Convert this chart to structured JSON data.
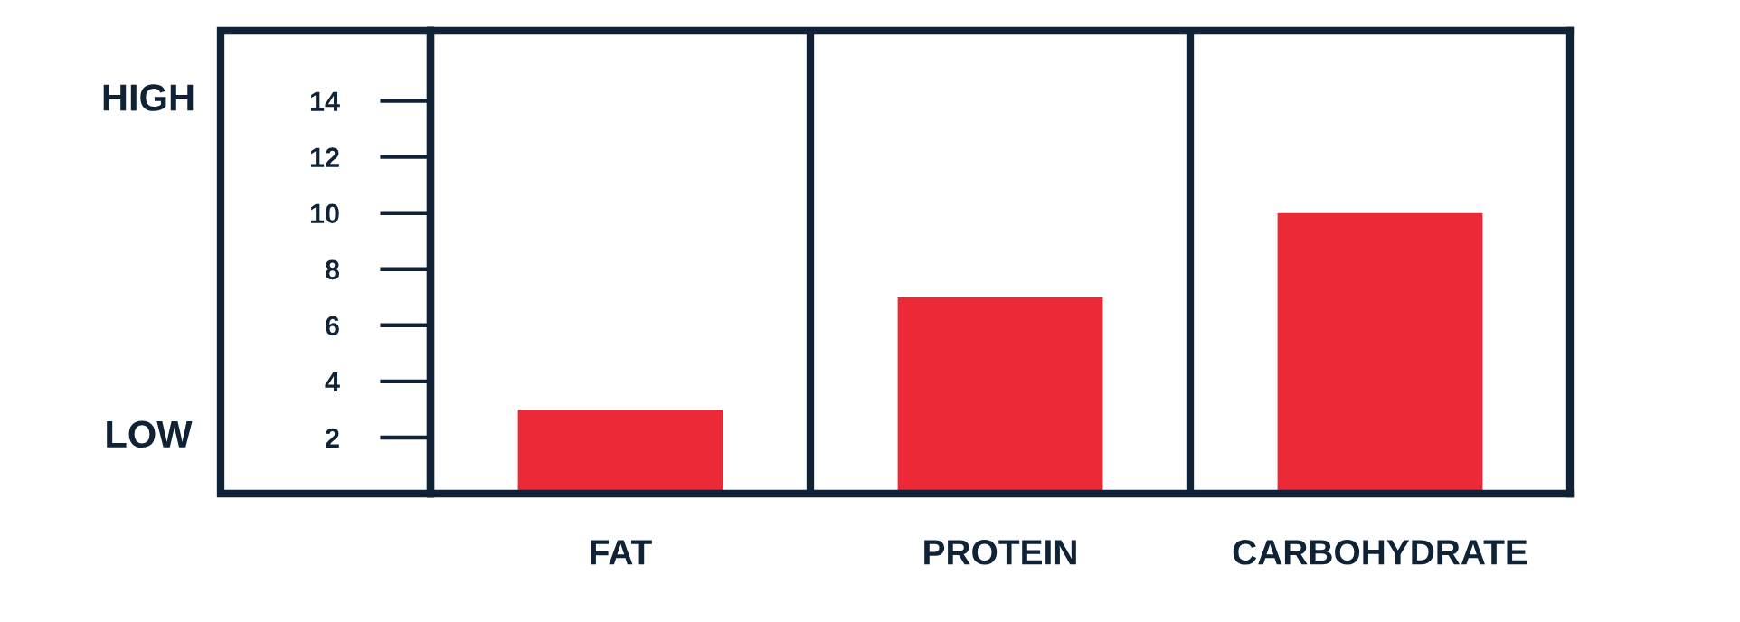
{
  "chart_data": {
    "type": "bar",
    "categories": [
      "FAT",
      "PROTEIN",
      "CARBOHYDRATE"
    ],
    "values": [
      3,
      7,
      10
    ],
    "color": "#ec2a37",
    "ylim": [
      0,
      16.5
    ],
    "yticks": [
      2,
      4,
      6,
      8,
      10,
      12,
      14
    ],
    "annotations": [
      "HIGH",
      "LOW"
    ],
    "grid": false
  }
}
